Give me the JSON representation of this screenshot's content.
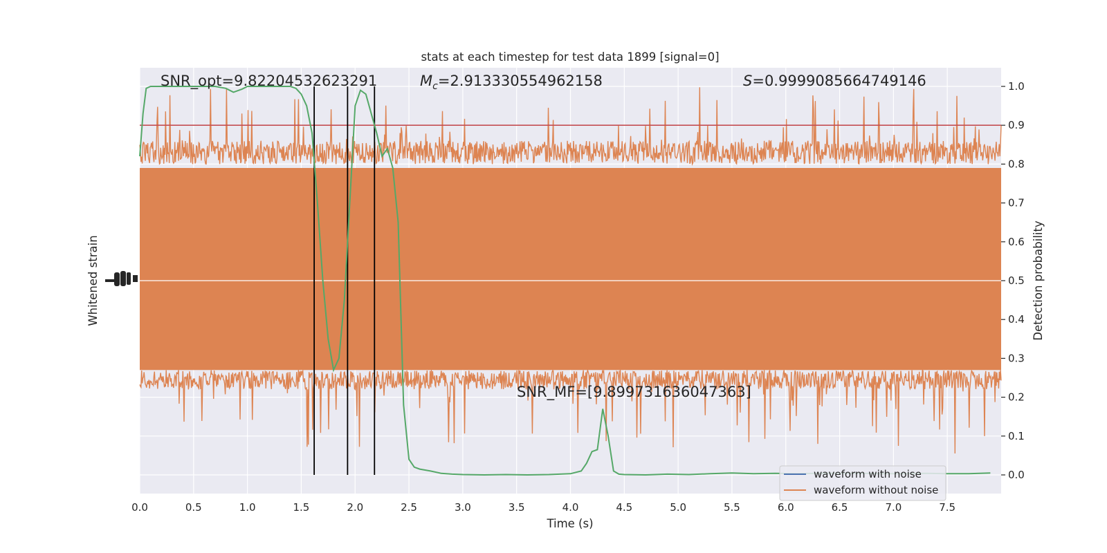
{
  "chart_data": {
    "type": "line",
    "title": "stats at each timestep for test data 1899 [signal=0]",
    "xlabel": "Time (s)",
    "ylabel_left": "Whitened strain",
    "ylabel_right": "Detection probability",
    "xlim": [
      0,
      8
    ],
    "ylim_right": [
      -0.048,
      1.048
    ],
    "x_ticks": [
      "0.0",
      "0.5",
      "1.0",
      "1.5",
      "2.0",
      "2.5",
      "3.0",
      "3.5",
      "4.0",
      "4.5",
      "5.0",
      "5.5",
      "6.0",
      "6.5",
      "7.0",
      "7.5"
    ],
    "y_ticks_right": [
      "0.0",
      "0.1",
      "0.2",
      "0.3",
      "0.4",
      "0.5",
      "0.6",
      "0.7",
      "0.8",
      "0.9",
      "1.0"
    ],
    "grid": true,
    "threshold": 0.9,
    "vertical_markers": [
      1.62,
      1.93,
      2.18
    ],
    "annotations": {
      "snr_opt": "SNR_opt=9.82204532623291",
      "mc_symbol": "M",
      "mc_subscript": "c",
      "mc_value": "=2.913330554962158",
      "s_symbol": "S",
      "s_value": "=0.9999085664749146",
      "snr_mf": "SNR_MF=[9.899731636047363]"
    },
    "legend": {
      "placement": "lower-right",
      "entries": [
        "waveform with noise",
        "waveform without noise"
      ]
    },
    "series": [
      {
        "name": "Detection probability",
        "x": [
          0.0,
          0.03,
          0.06,
          0.1,
          0.15,
          0.2,
          0.3,
          0.4,
          0.5,
          0.6,
          0.7,
          0.8,
          0.87,
          0.95,
          1.0,
          1.1,
          1.2,
          1.3,
          1.4,
          1.45,
          1.5,
          1.55,
          1.6,
          1.65,
          1.7,
          1.75,
          1.8,
          1.85,
          1.9,
          1.95,
          2.0,
          2.05,
          2.1,
          2.15,
          2.2,
          2.25,
          2.3,
          2.35,
          2.4,
          2.45,
          2.5,
          2.55,
          2.6,
          2.7,
          2.8,
          2.9,
          3.0,
          3.2,
          3.4,
          3.6,
          3.8,
          4.0,
          4.1,
          4.15,
          4.2,
          4.25,
          4.3,
          4.35,
          4.4,
          4.45,
          4.5,
          4.7,
          4.9,
          5.1,
          5.3,
          5.5,
          5.7,
          5.9,
          6.1,
          6.3,
          6.5,
          6.7,
          6.9,
          7.1,
          7.3,
          7.5,
          7.7,
          7.9
        ],
        "values": [
          0.82,
          0.93,
          0.995,
          1.0,
          1.0,
          1.0,
          1.0,
          1.0,
          1.0,
          1.0,
          1.0,
          0.995,
          0.985,
          0.993,
          1.0,
          1.0,
          1.0,
          1.0,
          1.0,
          0.995,
          0.98,
          0.95,
          0.88,
          0.7,
          0.5,
          0.35,
          0.27,
          0.3,
          0.45,
          0.7,
          0.95,
          0.99,
          0.98,
          0.93,
          0.88,
          0.82,
          0.84,
          0.79,
          0.65,
          0.18,
          0.04,
          0.02,
          0.015,
          0.01,
          0.004,
          0.002,
          0.001,
          0.0,
          0.001,
          0.0,
          0.001,
          0.003,
          0.01,
          0.03,
          0.06,
          0.065,
          0.17,
          0.1,
          0.01,
          0.002,
          0.001,
          0.0,
          0.002,
          0.001,
          0.003,
          0.005,
          0.003,
          0.004,
          0.003,
          0.004,
          0.004,
          0.004,
          0.003,
          0.003,
          0.004,
          0.003,
          0.003,
          0.005
        ],
        "color": "#55a868"
      }
    ],
    "colors": {
      "noise": "#4c72b0",
      "clean": "#dd8452",
      "probability": "#55a868",
      "threshold": "#c44e52",
      "marker": "#000000",
      "background": "#eaeaf2",
      "grid": "#ffffff"
    }
  }
}
